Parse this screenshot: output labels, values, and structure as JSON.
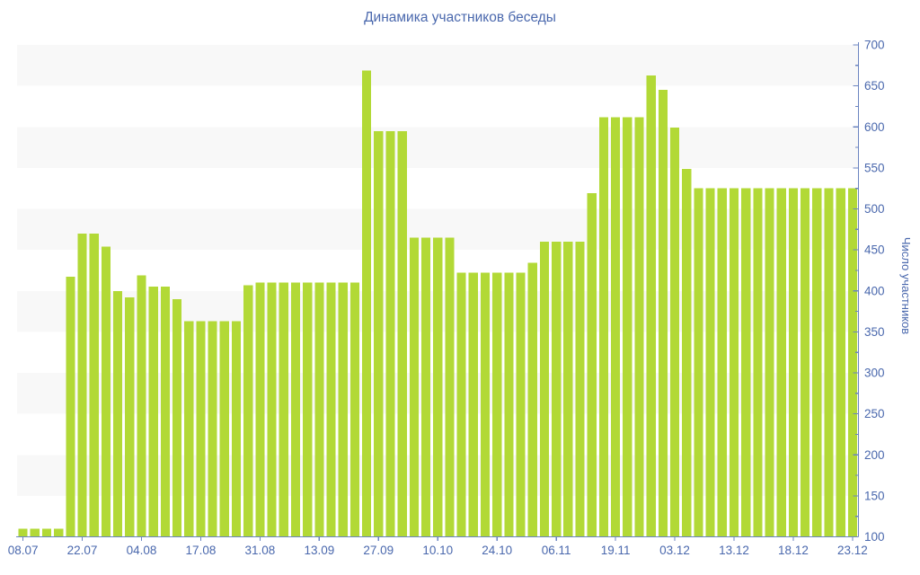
{
  "title": "Динамика участников беседы",
  "colors": {
    "bar": "#b2d936",
    "band": "#f8f8f8",
    "axis_line": "#6b84c0",
    "text_blue": "#4a68ad",
    "background": "#ffffff"
  },
  "chart_data": {
    "type": "bar",
    "title": "Динамика участников беседы",
    "xlabel": "",
    "ylabel": "Число участников",
    "ylim": [
      100,
      700
    ],
    "y_tick_step": 50,
    "y_minor_tick_step": 25,
    "grid": "alternating horizontal bands (gray on 150-200, 250-300, 350-400, 450-500, 550-600, 650-700)",
    "legend_position": "none",
    "y_axis_side": "right",
    "x_label_every_n_bars": 5,
    "x_tick_labels": [
      "08.07",
      "22.07",
      "04.08",
      "17.08",
      "31.08",
      "13.09",
      "27.09",
      "10.10",
      "24.10",
      "06.11",
      "19.11",
      "03.12",
      "13.12",
      "18.12",
      "23.12"
    ],
    "values": [
      110,
      110,
      110,
      110,
      417,
      470,
      470,
      454,
      400,
      392,
      419,
      405,
      405,
      390,
      363,
      363,
      363,
      363,
      363,
      407,
      410,
      410,
      410,
      410,
      410,
      410,
      410,
      410,
      410,
      669,
      595,
      595,
      595,
      465,
      465,
      465,
      465,
      422,
      422,
      422,
      422,
      422,
      422,
      434,
      460,
      460,
      460,
      460,
      519,
      612,
      612,
      612,
      612,
      663,
      645,
      599,
      549,
      525,
      525,
      525,
      525,
      525,
      525,
      525,
      525,
      525,
      525,
      525,
      525,
      525,
      525
    ]
  }
}
